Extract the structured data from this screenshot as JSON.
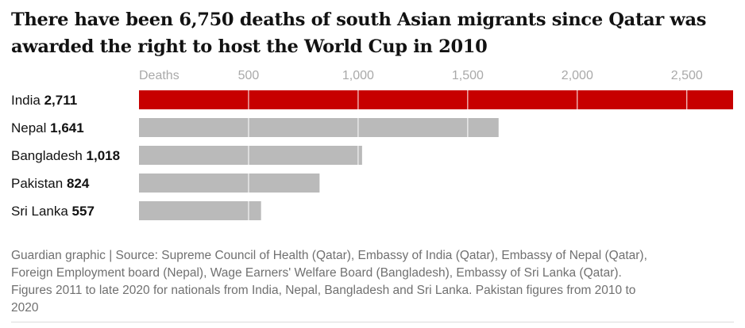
{
  "title_line1": "There have been 6,750 deaths of south Asian migrants since Qatar was",
  "title_line2": "awarded the right to host the World Cup in 2010",
  "footer_lines": [
    "Guardian graphic | Source: Supreme Council of Health (Qatar), Embassy of India (Qatar), Embassy of Nepal (Qatar),",
    "Foreign Employment board (Nepal), Wage Earners' Welfare Board (Bangladesh), Embassy of Sri Lanka (Qatar).",
    "Figures 2011 to late 2020 for nationals from India, Nepal, Bangladesh and Sri Lanka. Pakistan figures from 2010 to",
    "2020"
  ],
  "colors": {
    "highlight": "#c70000",
    "bar": "#bababa",
    "gridline": "#ffffff"
  },
  "chart_data": {
    "type": "bar",
    "orientation": "horizontal",
    "axis_label": "Deaths",
    "ticks": [
      500,
      1000,
      1500,
      2000,
      2500
    ],
    "tick_labels": [
      "500",
      "1,000",
      "1,500",
      "2,000",
      "2,500"
    ],
    "xlim": [
      0,
      2711
    ],
    "categories": [
      "India",
      "Nepal",
      "Bangladesh",
      "Pakistan",
      "Sri Lanka"
    ],
    "values": [
      2711,
      1641,
      1018,
      824,
      557
    ],
    "value_labels": [
      "2,711",
      "1,641",
      "1,018",
      "824",
      "557"
    ],
    "highlight_index": 0
  }
}
